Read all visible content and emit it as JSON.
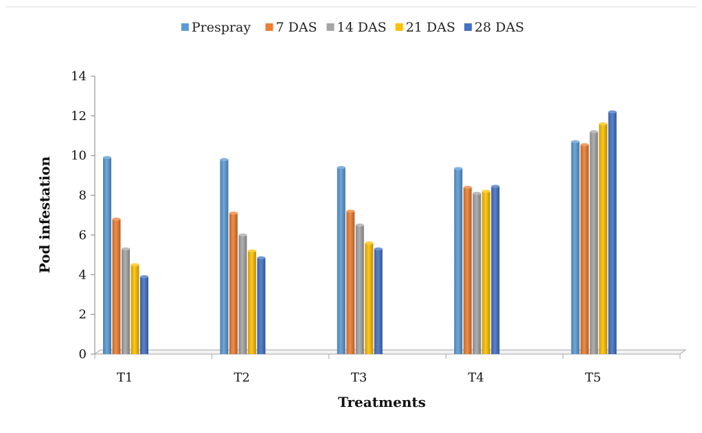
{
  "chart_data": {
    "type": "bar",
    "title": "",
    "xlabel": "Treatments",
    "ylabel": "Pod infestation",
    "categories": [
      "T1",
      "T2",
      "T3",
      "T4",
      "T5"
    ],
    "ylim": [
      0,
      14
    ],
    "yticks": [
      0,
      2,
      4,
      6,
      8,
      10,
      12,
      14
    ],
    "grid": false,
    "legend_position": "top",
    "series": [
      {
        "name": "Prespray",
        "color": "#5b9bd5",
        "values": [
          9.9,
          9.8,
          9.4,
          9.35,
          10.7
        ]
      },
      {
        "name": "7 DAS",
        "color": "#ed7d31",
        "values": [
          6.8,
          7.1,
          7.2,
          8.4,
          10.55
        ]
      },
      {
        "name": "14 DAS",
        "color": "#a5a5a5",
        "values": [
          5.3,
          6.0,
          6.5,
          8.1,
          11.2
        ]
      },
      {
        "name": "21 DAS",
        "color": "#ffc000",
        "values": [
          4.5,
          5.2,
          5.6,
          8.2,
          11.6
        ]
      },
      {
        "name": "28 DAS",
        "color": "#4472c4",
        "values": [
          3.9,
          4.85,
          5.3,
          8.45,
          12.2
        ]
      }
    ]
  }
}
